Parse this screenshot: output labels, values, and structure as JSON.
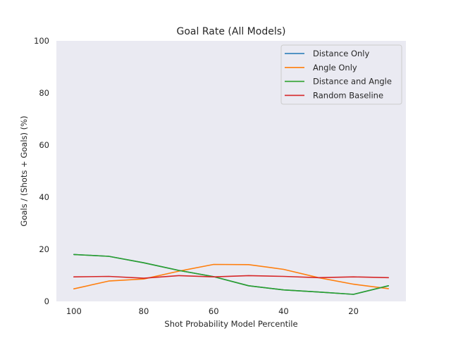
{
  "chart_data": {
    "type": "line",
    "title": "Goal Rate (All Models)",
    "xlabel": "Shot Probability Model Percentile",
    "ylabel": "Goals / (Shots + Goals) (%)",
    "x": [
      100,
      90,
      80,
      70,
      60,
      50,
      40,
      30,
      20,
      10
    ],
    "xlim": [
      105,
      5
    ],
    "ylim": [
      0,
      100
    ],
    "x_ticks": [
      "100",
      "80",
      "60",
      "40",
      "20"
    ],
    "y_ticks": [
      "0",
      "20",
      "40",
      "60",
      "80",
      "100"
    ],
    "grid": false,
    "legend_position": "top-right",
    "series": [
      {
        "name": "Distance Only",
        "color": "#1f77b4",
        "values": [
          18.0,
          17.3,
          14.8,
          11.9,
          9.5,
          6.0,
          4.4,
          3.6,
          2.7,
          6.0
        ]
      },
      {
        "name": "Angle Only",
        "color": "#ff7f0e",
        "values": [
          4.8,
          7.8,
          8.6,
          11.6,
          14.2,
          14.1,
          12.3,
          9.1,
          6.6,
          4.9
        ]
      },
      {
        "name": "Distance and Angle",
        "color": "#2ca02c",
        "values": [
          18.0,
          17.3,
          14.8,
          11.9,
          9.5,
          6.0,
          4.4,
          3.6,
          2.7,
          6.0
        ]
      },
      {
        "name": "Random Baseline",
        "color": "#d62728",
        "values": [
          9.4,
          9.6,
          8.9,
          9.9,
          9.4,
          9.9,
          9.6,
          9.1,
          9.4,
          9.1
        ]
      }
    ]
  }
}
